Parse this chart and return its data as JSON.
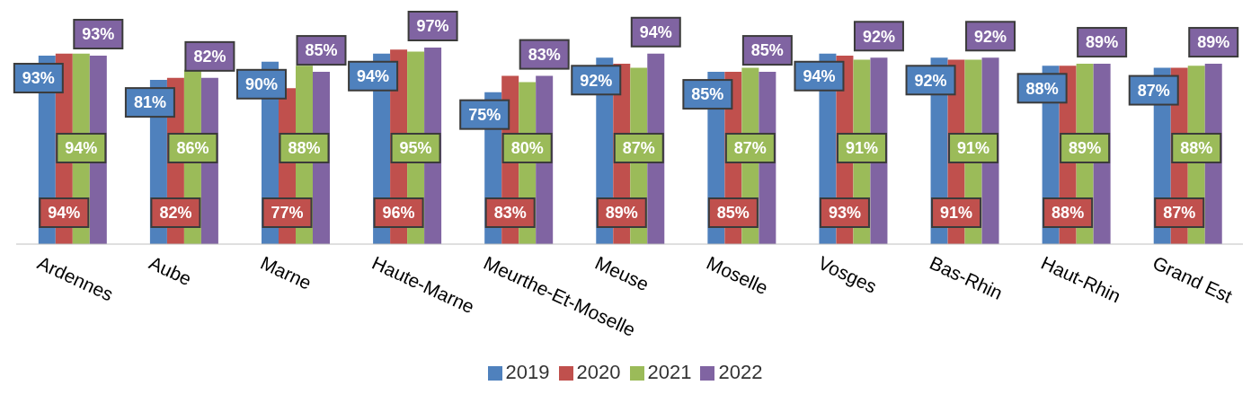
{
  "chart_data": {
    "type": "bar",
    "categories": [
      "Ardennes",
      "Aube",
      "Marne",
      "Haute-Marne",
      "Meurthe-Et-Moselle",
      "Meuse",
      "Moselle",
      "Vosges",
      "Bas-Rhin",
      "Haut-Rhin",
      "Grand Est"
    ],
    "series": [
      {
        "name": "2019",
        "color": "#4f81bd",
        "values": [
          93,
          81,
          90,
          94,
          75,
          92,
          85,
          94,
          92,
          88,
          87
        ],
        "value_labels": [
          "93%",
          "81%",
          "90%",
          "94%",
          "75%",
          "92%",
          "85%",
          "94%",
          "92%",
          "88%",
          "87%"
        ]
      },
      {
        "name": "2020",
        "color": "#c0504d",
        "values": [
          94,
          82,
          77,
          96,
          83,
          89,
          85,
          93,
          91,
          88,
          87
        ],
        "value_labels": [
          "94%",
          "82%",
          "77%",
          "96%",
          "83%",
          "89%",
          "85%",
          "93%",
          "91%",
          "88%",
          "87%"
        ]
      },
      {
        "name": "2021",
        "color": "#9bbb59",
        "values": [
          94,
          86,
          88,
          95,
          80,
          87,
          87,
          91,
          91,
          89,
          88
        ],
        "value_labels": [
          "94%",
          "86%",
          "88%",
          "95%",
          "80%",
          "87%",
          "87%",
          "91%",
          "91%",
          "89%",
          "88%"
        ]
      },
      {
        "name": "2022",
        "color": "#8064a2",
        "values": [
          93,
          82,
          85,
          97,
          83,
          94,
          85,
          92,
          92,
          89,
          89
        ],
        "value_labels": [
          "93%",
          "82%",
          "85%",
          "97%",
          "83%",
          "94%",
          "85%",
          "92%",
          "92%",
          "89%",
          "89%"
        ]
      }
    ],
    "legend": "bottom"
  }
}
